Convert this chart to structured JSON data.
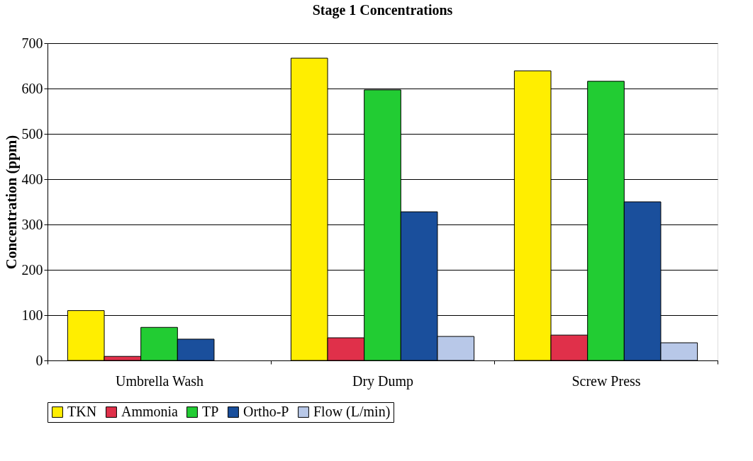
{
  "chart_data": {
    "type": "bar",
    "title": "Stage 1 Concentrations",
    "ylabel": "Concentration (ppm)",
    "categories": [
      "Umbrella Wash",
      "Dry Dump",
      "Screw Press"
    ],
    "series": [
      {
        "name": "TKN",
        "color": "#ffee00",
        "values": [
          110,
          667,
          639
        ]
      },
      {
        "name": "Ammonia",
        "color": "#e0304a",
        "values": [
          9,
          50,
          56
        ]
      },
      {
        "name": "TP",
        "color": "#22cc33",
        "values": [
          73,
          597,
          616
        ]
      },
      {
        "name": "Ortho-P",
        "color": "#1a4f9c",
        "values": [
          47,
          328,
          350
        ]
      },
      {
        "name": "Flow (L/min)",
        "color": "#b8c8e8",
        "values": [
          null,
          53,
          39
        ]
      }
    ],
    "ylim": [
      0,
      700
    ],
    "yticks": [
      0,
      100,
      200,
      300,
      400,
      500,
      600,
      700
    ],
    "grid": "y",
    "legend": "bottom"
  }
}
